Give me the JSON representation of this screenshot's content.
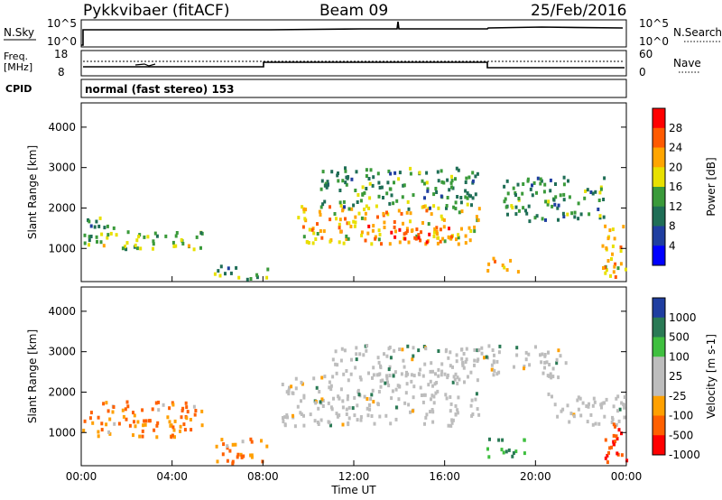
{
  "header": {
    "station": "Pykkvibaer (fitACF)",
    "beam": "Beam 09",
    "date": "25/Feb/2016"
  },
  "top_panels": {
    "nsky_label": "N.Sky",
    "nsky_ticks": [
      "10^5",
      "10^0"
    ],
    "nsearch_label": "N.Search",
    "nsearch_ticks": [
      "10^5",
      "10^0"
    ],
    "freq_label_1": "Freq.",
    "freq_label_2": "[MHz]",
    "freq_ticks": [
      "18",
      "8"
    ],
    "nave_label": "Nave",
    "nave_ticks": [
      "60",
      "0"
    ],
    "cpid_label": "CPID",
    "cpid_text": "normal (fast stereo) 153"
  },
  "chart_data": [
    {
      "type": "heatmap",
      "name": "power",
      "title": "",
      "xlabel": "",
      "ylabel": "Slant Range [km]",
      "x_ticks": [
        "00:00",
        "04:00",
        "08:00",
        "12:00",
        "16:00",
        "20:00",
        "00:00"
      ],
      "y_ticks": [
        "1000",
        "2000",
        "3000",
        "4000"
      ],
      "ylim": [
        180,
        4600
      ],
      "colorbar_label": "Power [dB]",
      "colorbar_ticks": [
        "28",
        "24",
        "20",
        "16",
        "12",
        "8",
        "4"
      ],
      "colorbar_colors": [
        "#ff0000",
        "#ff5a00",
        "#ffa500",
        "#e8e000",
        "#3a9a3a",
        "#1f6e56",
        "#1f3ea0",
        "#0000ff"
      ],
      "regions": [
        {
          "t": [
            0.0,
            5.3
          ],
          "r": [
            1000,
            1450
          ],
          "level": 16
        },
        {
          "t": [
            0.0,
            1.4
          ],
          "r": [
            1100,
            1800
          ],
          "level": 12
        },
        {
          "t": [
            5.8,
            8.2
          ],
          "r": [
            250,
            600
          ],
          "level": 12
        },
        {
          "t": [
            9.5,
            17.5
          ],
          "r": [
            1150,
            2100
          ],
          "level": 20
        },
        {
          "t": [
            12.5,
            16.3
          ],
          "r": [
            1150,
            1600
          ],
          "level": 26
        },
        {
          "t": [
            10.5,
            17.5
          ],
          "r": [
            2000,
            3050
          ],
          "level": 12
        },
        {
          "t": [
            18.5,
            23.0
          ],
          "r": [
            1700,
            2800
          ],
          "level": 12
        },
        {
          "t": [
            17.8,
            19.2
          ],
          "r": [
            450,
            800
          ],
          "level": 22
        },
        {
          "t": [
            22.8,
            24.0
          ],
          "r": [
            250,
            1600
          ],
          "level": 20
        }
      ]
    },
    {
      "type": "heatmap",
      "name": "velocity",
      "title": "",
      "xlabel": "Time UT",
      "ylabel": "Slant Range [km]",
      "x_ticks": [
        "00:00",
        "04:00",
        "08:00",
        "12:00",
        "16:00",
        "20:00",
        "00:00"
      ],
      "y_ticks": [
        "1000",
        "2000",
        "3000",
        "4000"
      ],
      "ylim": [
        180,
        4600
      ],
      "colorbar_label": "Velocity [m s-1]",
      "colorbar_ticks": [
        "1000",
        "500",
        "100",
        "25",
        "-25",
        "-100",
        "-500",
        "-1000"
      ],
      "colorbar_colors": [
        "#1f3ea0",
        "#2a7a55",
        "#3fbf3f",
        "#bdbdbd",
        "#bdbdbd",
        "#ffa000",
        "#ff6000",
        "#ff0000"
      ],
      "regions": [
        {
          "t": [
            0.0,
            5.3
          ],
          "r": [
            900,
            1800
          ],
          "level": -100
        },
        {
          "t": [
            5.8,
            8.2
          ],
          "r": [
            250,
            900
          ],
          "level": -100
        },
        {
          "t": [
            8.8,
            17.5
          ],
          "r": [
            1200,
            2500
          ],
          "level": 0
        },
        {
          "t": [
            11.0,
            21.5
          ],
          "r": [
            2400,
            3200
          ],
          "level": 0
        },
        {
          "t": [
            17.8,
            19.5
          ],
          "r": [
            400,
            900
          ],
          "level": 500
        },
        {
          "t": [
            20.5,
            24.0
          ],
          "r": [
            1200,
            2000
          ],
          "level": 0
        },
        {
          "t": [
            22.8,
            24.0
          ],
          "r": [
            300,
            1300
          ],
          "level": -500
        }
      ]
    }
  ]
}
